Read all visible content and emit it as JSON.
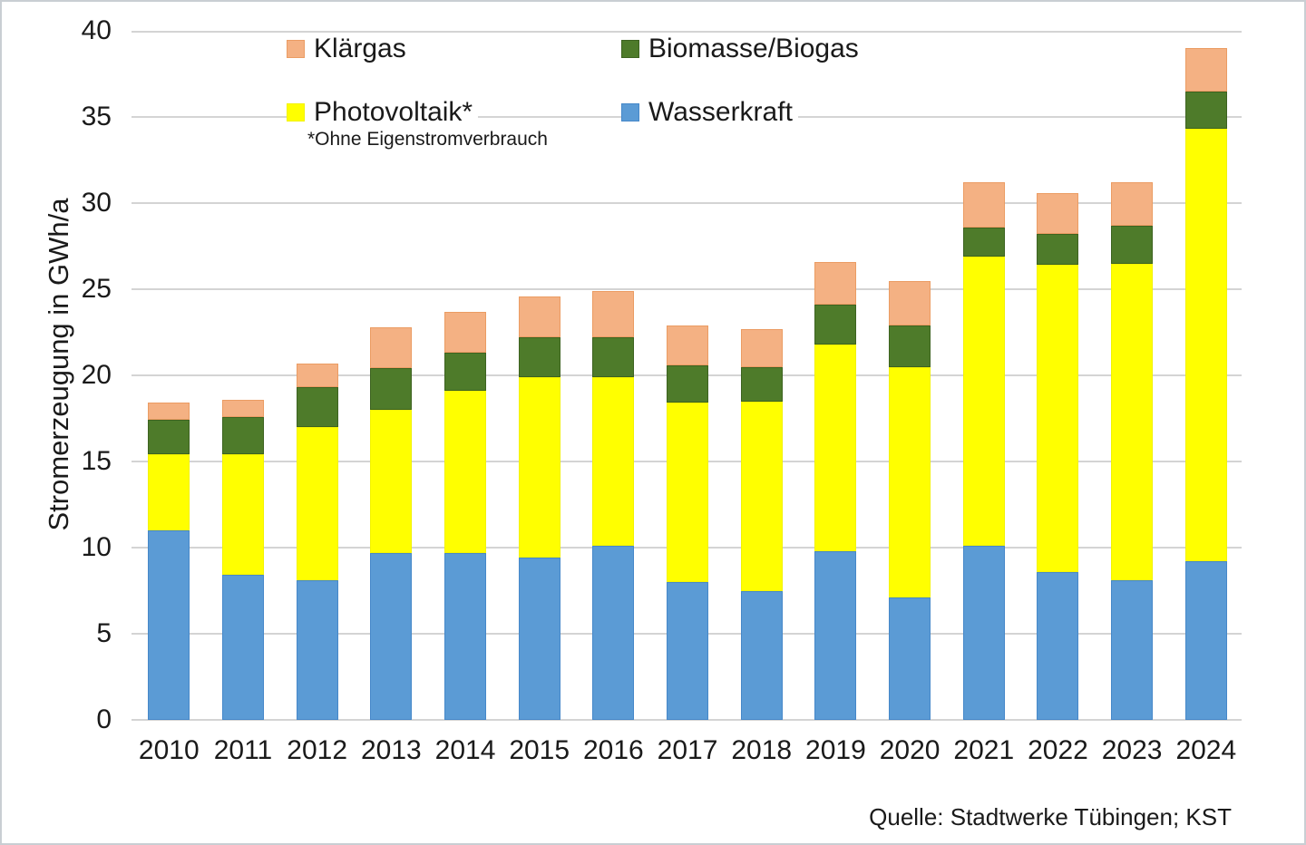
{
  "chart_data": {
    "type": "bar",
    "stacked": true,
    "title": "",
    "xlabel": "",
    "ylabel": "Stromerzeugung in GWh/a",
    "ylim": [
      0,
      40
    ],
    "yticks": [
      0,
      5,
      10,
      15,
      20,
      25,
      30,
      35,
      40
    ],
    "grid": "horizontal",
    "legend_position": "top",
    "legend_note": "*Ohne Eigenstromverbrauch",
    "source": "Quelle: Stadtwerke Tübingen; KST",
    "categories": [
      "2010",
      "2011",
      "2012",
      "2013",
      "2014",
      "2015",
      "2016",
      "2017",
      "2018",
      "2019",
      "2020",
      "2021",
      "2022",
      "2023",
      "2024"
    ],
    "series": [
      {
        "name": "Wasserkraft",
        "color": "#5b9bd5",
        "border_color": "#4688c9",
        "values": [
          11.0,
          8.4,
          8.1,
          9.7,
          9.7,
          9.4,
          10.1,
          8.0,
          7.5,
          9.8,
          7.1,
          10.1,
          8.6,
          8.1,
          9.2
        ]
      },
      {
        "name": "Photovoltaik*",
        "color": "#ffff00",
        "border_color": "#f3f300",
        "values": [
          4.4,
          7.0,
          8.9,
          8.3,
          9.4,
          10.5,
          9.8,
          10.4,
          11.0,
          12.0,
          13.4,
          16.8,
          17.8,
          18.4,
          25.1
        ]
      },
      {
        "name": "Biomasse/Biogas",
        "color": "#4e7b2a",
        "border_color": "#3d6320",
        "values": [
          2.0,
          2.2,
          2.3,
          2.4,
          2.2,
          2.3,
          2.3,
          2.2,
          2.0,
          2.3,
          2.4,
          1.7,
          1.8,
          2.2,
          2.2
        ]
      },
      {
        "name": "Klärgas",
        "color": "#f4b183",
        "border_color": "#eb9c63",
        "values": [
          1.0,
          1.0,
          1.4,
          2.4,
          2.4,
          2.4,
          2.7,
          2.3,
          2.2,
          2.5,
          2.6,
          2.6,
          2.4,
          2.5,
          2.5
        ]
      }
    ]
  }
}
